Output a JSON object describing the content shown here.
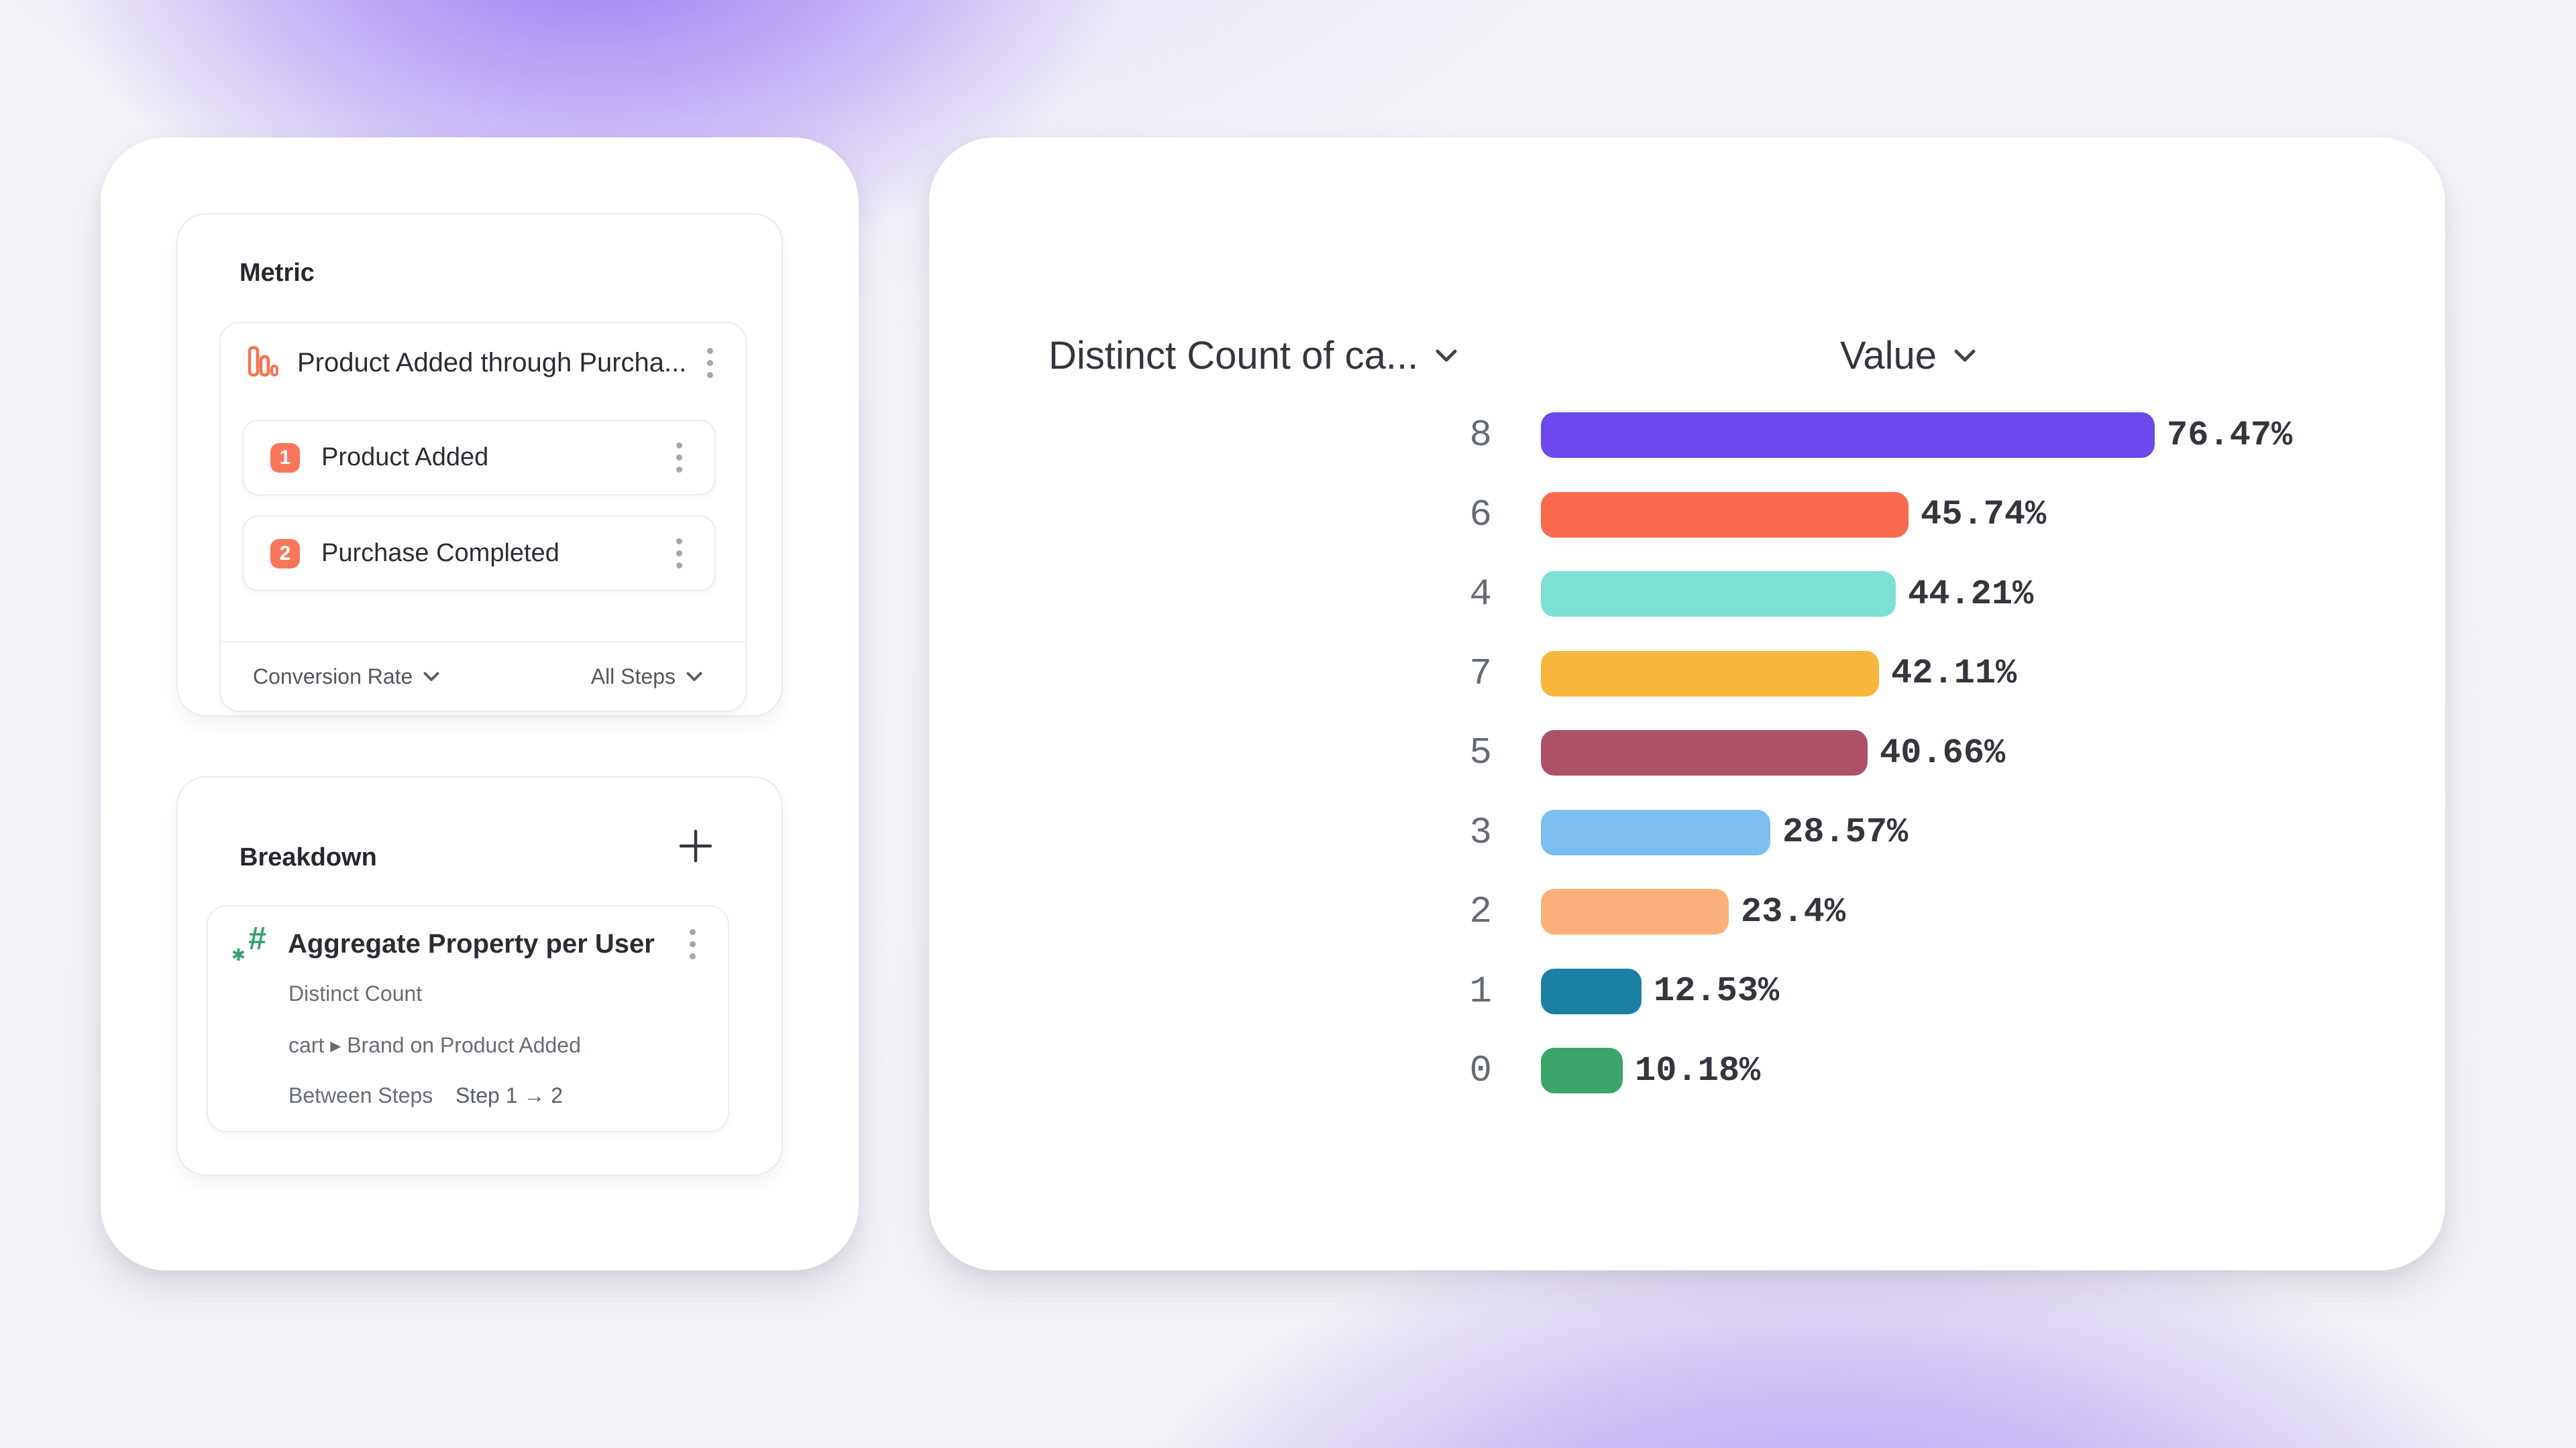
{
  "metric_panel": {
    "title": "Metric",
    "metric_item": {
      "label": "Product Added through Purcha...",
      "icon": "funnel-bars-icon",
      "icon_color": "#f5714e"
    },
    "steps": [
      {
        "number": "1",
        "label": "Product Added"
      },
      {
        "number": "2",
        "label": "Purchase Completed"
      }
    ],
    "badge_color": "#f8775b",
    "footer": {
      "left_label": "Conversion Rate",
      "right_label": "All Steps"
    }
  },
  "breakdown_panel": {
    "title": "Breakdown",
    "add_icon": "plus-icon",
    "item": {
      "title": "Aggregate Property per User",
      "icon": "hash-star-icon",
      "icon_color": "#36a26e",
      "row_aggregation": "Distinct Count",
      "row_property": "cart ▸ Brand on Product Added",
      "between_label": "Between Steps",
      "between_value": "Step 1 → 2"
    }
  },
  "chart_data": {
    "type": "bar",
    "orientation": "horizontal",
    "col1_header": "Distinct Count of ca...",
    "col2_header": "Value",
    "categories": [
      "8",
      "6",
      "4",
      "7",
      "5",
      "3",
      "2",
      "1",
      "0"
    ],
    "values": [
      76.47,
      45.74,
      44.21,
      42.11,
      40.66,
      28.57,
      23.4,
      12.53,
      10.18
    ],
    "labels": [
      "76.47%",
      "45.74%",
      "44.21%",
      "42.11%",
      "40.66%",
      "28.57%",
      "23.4%",
      "12.53%",
      "10.18%"
    ],
    "colors": [
      "#6b49ec",
      "#f8694d",
      "#7ce0d3",
      "#f6b73c",
      "#ad5168",
      "#7cbef0",
      "#fbb07b",
      "#1b80a4",
      "#3aa469"
    ],
    "xlim": [
      0,
      100
    ],
    "unit": "%",
    "grid": false,
    "legend": false,
    "value_labels": "end-of-bar",
    "sort": "descending"
  }
}
